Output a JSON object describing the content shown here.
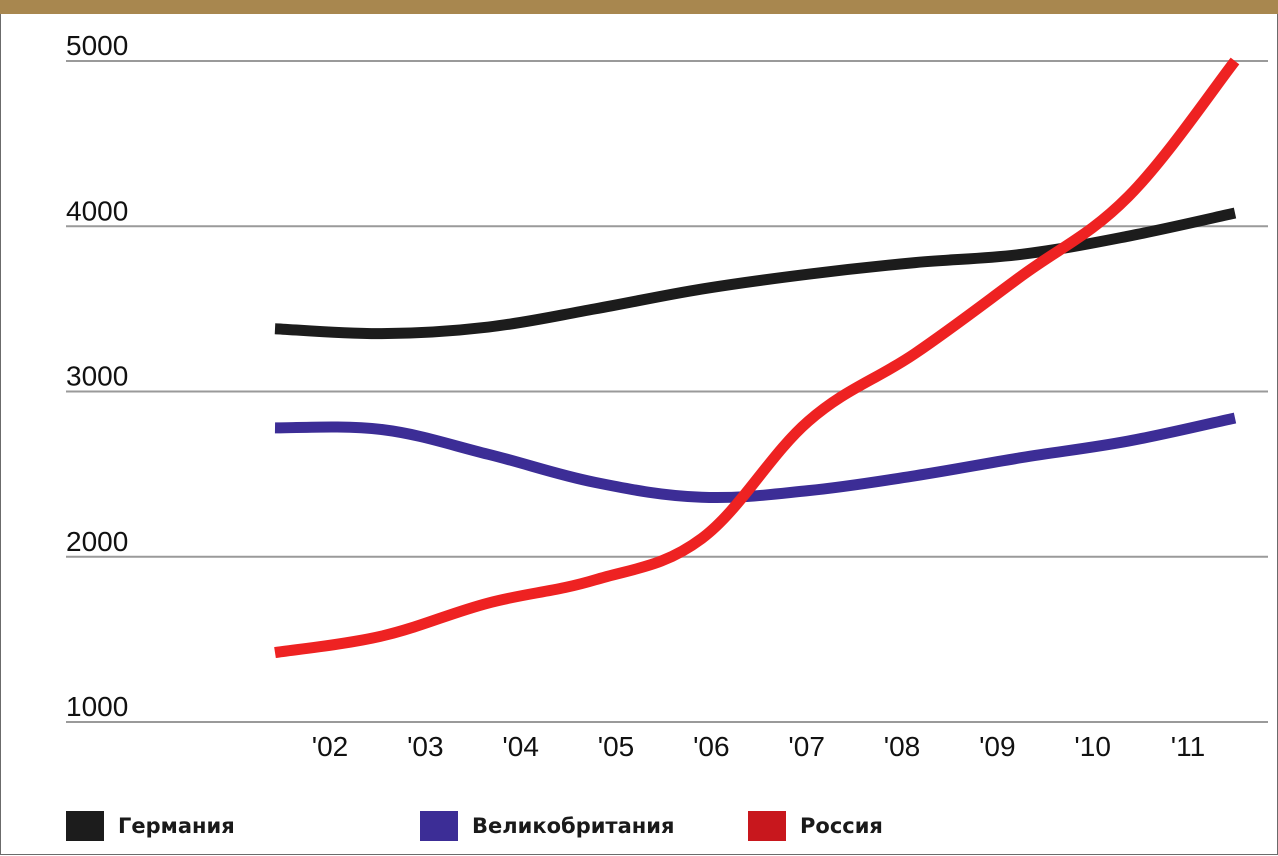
{
  "chart_data": {
    "type": "line",
    "categories": [
      "'02",
      "'03",
      "'04",
      "'05",
      "'06",
      "'07",
      "'08",
      "'09",
      "'10",
      "'11"
    ],
    "ylim": [
      1000,
      5000
    ],
    "yticks": [
      "1000",
      "2000",
      "3000",
      "4000",
      "5000"
    ],
    "grid": true,
    "legend_position": "bottom",
    "series": [
      {
        "name": "Германия",
        "color": "#1c1c1c",
        "values": [
          3380,
          3350,
          3390,
          3500,
          3620,
          3710,
          3780,
          3830,
          3940,
          4080
        ]
      },
      {
        "name": "Великобритания",
        "color": "#3c2d96",
        "values": [
          2780,
          2770,
          2620,
          2450,
          2360,
          2400,
          2490,
          2600,
          2700,
          2840
        ]
      },
      {
        "name": "Россия",
        "color": "#ee2222",
        "values": [
          1420,
          1520,
          1720,
          1860,
          2110,
          2820,
          3230,
          3700,
          4180,
          5000
        ]
      }
    ]
  }
}
